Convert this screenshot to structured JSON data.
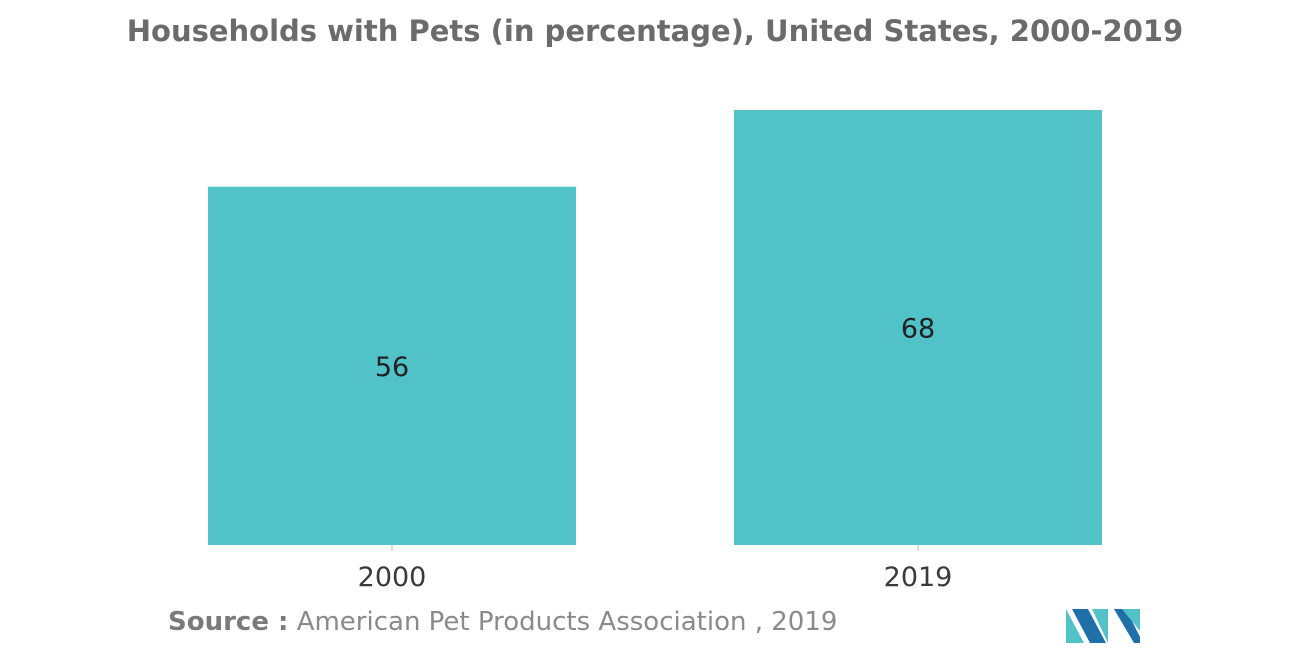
{
  "chart_data": {
    "type": "bar",
    "title": "Households with Pets (in percentage), United States, 2000-2019",
    "categories": [
      "2000",
      "2019"
    ],
    "values": [
      56,
      68
    ],
    "xlabel": "",
    "ylabel": "",
    "ylim": [
      0,
      70
    ],
    "grid": false,
    "legend": "none",
    "bar_color": "#52c2c9"
  },
  "source": {
    "label": "Source :",
    "text": "American Pet Products Association , 2019"
  },
  "logo": {
    "icon": "mordor-intelligence-logo",
    "colors": [
      "#52c2c9",
      "#1f6fa8"
    ]
  }
}
